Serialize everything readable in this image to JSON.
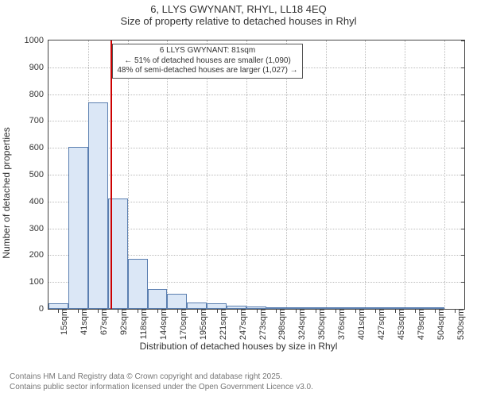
{
  "header": {
    "title_main": "6, LLYS GWYNANT, RHYL, LL18 4EQ",
    "title_sub": "Size of property relative to detached houses in Rhyl"
  },
  "chart": {
    "type": "histogram",
    "y_axis": {
      "label": "Number of detached properties",
      "min": 0,
      "max": 1000,
      "tick_step": 100,
      "ticks": [
        0,
        100,
        200,
        300,
        400,
        500,
        600,
        700,
        800,
        900,
        1000
      ]
    },
    "x_axis": {
      "label": "Distribution of detached houses by size in Rhyl",
      "tick_labels": [
        "15sqm",
        "41sqm",
        "67sqm",
        "92sqm",
        "118sqm",
        "144sqm",
        "170sqm",
        "195sqm",
        "221sqm",
        "247sqm",
        "273sqm",
        "298sqm",
        "324sqm",
        "350sqm",
        "376sqm",
        "401sqm",
        "427sqm",
        "453sqm",
        "479sqm",
        "504sqm",
        "530sqm"
      ]
    },
    "bins": {
      "start": 0,
      "width": 25.75,
      "count": 21,
      "values": [
        20,
        605,
        770,
        410,
        185,
        75,
        55,
        25,
        20,
        12,
        10,
        6,
        4,
        3,
        2,
        2,
        1,
        1,
        1,
        1,
        0
      ]
    },
    "marker": {
      "value_sqm": 81,
      "color": "#cc0000"
    },
    "annotation": {
      "line1": "6 LLYS GWYNANT: 81sqm",
      "line2": "← 51% of detached houses are smaller (1,090)",
      "line3": "48% of semi-detached houses are larger (1,027) →"
    },
    "style": {
      "bar_fill": "#dbe7f6",
      "bar_stroke": "#5b7fb0",
      "grid_color": "#bbbbbb",
      "axis_color": "#444444",
      "background": "#ffffff",
      "title_fontsize": 13,
      "axis_label_fontsize": 12,
      "tick_fontsize": 11,
      "annotation_fontsize": 10
    }
  },
  "footer": {
    "line1": "Contains HM Land Registry data © Crown copyright and database right 2025.",
    "line2": "Contains public sector information licensed under the Open Government Licence v3.0."
  }
}
